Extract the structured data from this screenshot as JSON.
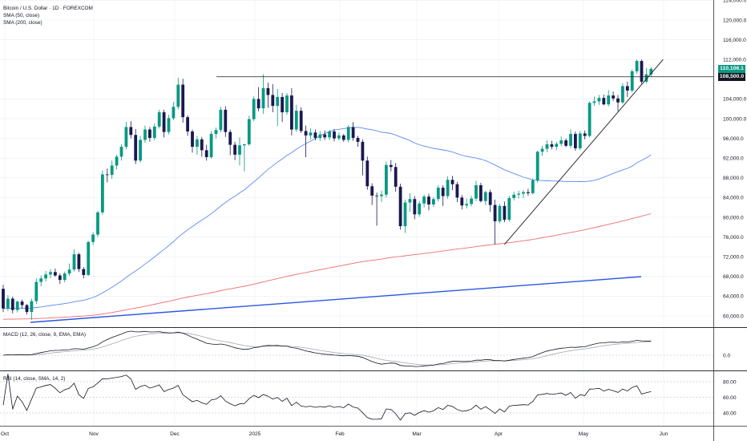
{
  "colors": {
    "up": "#089981",
    "down": "#1a1850",
    "sma50": "#5b8def",
    "sma200": "#ee6e6e",
    "long_trend": "#2a55e5",
    "resistance": "#1a1a1a",
    "grid": "#e6e9ef",
    "price_badge": "#089981",
    "level_badge": "#131722",
    "macd_line": "#131722",
    "signal_line": "#a5a8b0",
    "rsi_line": "#131722"
  },
  "legend": {
    "symbol": "Bitcoin / U.S. Dollar · 1D · FOREXCOM",
    "sma50": "SMA (50, close)",
    "sma200": "SMA (200, close)",
    "macd": "MACD (12, 26, close, 9, EMA, EMA)",
    "rsi": "RSI (14, close, SMA, 14, 2)"
  },
  "badges": {
    "last_price": "110,106.1",
    "level": "108,500.0"
  },
  "chart_data": {
    "type": "candlestick",
    "x_axis_labels": [
      "Oct",
      "Nov",
      "Dec",
      "2025",
      "Feb",
      "Mar",
      "Apr",
      "May",
      "Jun"
    ],
    "price_axis_labels": [
      "124,000.0",
      "120,000.0",
      "116,000.0",
      "112,000.0",
      "104,000.0",
      "100,000.0",
      "96,000.0",
      "92,000.0",
      "88,000.0",
      "84,000.0",
      "80,000.0",
      "76,000.0",
      "72,000.0",
      "68,000.0",
      "64,000.0",
      "60,000.0"
    ],
    "macd_axis_labels": [
      "0.0"
    ],
    "rsi_axis_labels": [
      "80.00",
      "60.00",
      "40.00"
    ],
    "candles": [
      {
        "o": 65500,
        "h": 66300,
        "l": 60800,
        "c": 61500
      },
      {
        "o": 61500,
        "h": 64200,
        "l": 61000,
        "c": 63500
      },
      {
        "o": 63500,
        "h": 63900,
        "l": 60500,
        "c": 61200
      },
      {
        "o": 61200,
        "h": 63100,
        "l": 60700,
        "c": 62900
      },
      {
        "o": 62900,
        "h": 63300,
        "l": 61500,
        "c": 62200
      },
      {
        "o": 62200,
        "h": 62400,
        "l": 60300,
        "c": 60800
      },
      {
        "o": 60800,
        "h": 63500,
        "l": 59200,
        "c": 63000
      },
      {
        "o": 63000,
        "h": 67600,
        "l": 62400,
        "c": 66900
      },
      {
        "o": 66900,
        "h": 68200,
        "l": 66000,
        "c": 67600
      },
      {
        "o": 67600,
        "h": 69100,
        "l": 67000,
        "c": 68400
      },
      {
        "o": 68400,
        "h": 69500,
        "l": 67600,
        "c": 68900
      },
      {
        "o": 68900,
        "h": 69600,
        "l": 67900,
        "c": 68200
      },
      {
        "o": 68200,
        "h": 68600,
        "l": 66500,
        "c": 67300
      },
      {
        "o": 67300,
        "h": 69000,
        "l": 66800,
        "c": 68600
      },
      {
        "o": 68600,
        "h": 70600,
        "l": 68100,
        "c": 69400
      },
      {
        "o": 69400,
        "h": 73500,
        "l": 69000,
        "c": 72500
      },
      {
        "o": 72500,
        "h": 72800,
        "l": 68900,
        "c": 69500
      },
      {
        "o": 69500,
        "h": 69900,
        "l": 67600,
        "c": 68300
      },
      {
        "o": 68300,
        "h": 75200,
        "l": 68100,
        "c": 75000
      },
      {
        "o": 75000,
        "h": 77000,
        "l": 74400,
        "c": 76500
      },
      {
        "o": 76500,
        "h": 81300,
        "l": 76000,
        "c": 81000
      },
      {
        "o": 81000,
        "h": 89500,
        "l": 80500,
        "c": 88700
      },
      {
        "o": 88700,
        "h": 89900,
        "l": 87100,
        "c": 88600
      },
      {
        "o": 88600,
        "h": 91500,
        "l": 87800,
        "c": 90500
      },
      {
        "o": 90500,
        "h": 92700,
        "l": 89700,
        "c": 92300
      },
      {
        "o": 92300,
        "h": 94800,
        "l": 91500,
        "c": 94300
      },
      {
        "o": 94300,
        "h": 99300,
        "l": 93800,
        "c": 98300
      },
      {
        "o": 98300,
        "h": 99500,
        "l": 96000,
        "c": 96700
      },
      {
        "o": 96700,
        "h": 97900,
        "l": 90800,
        "c": 91500
      },
      {
        "o": 91500,
        "h": 96500,
        "l": 91100,
        "c": 95700
      },
      {
        "o": 95700,
        "h": 98600,
        "l": 95100,
        "c": 97800
      },
      {
        "o": 97800,
        "h": 98300,
        "l": 95300,
        "c": 96100
      },
      {
        "o": 96100,
        "h": 99000,
        "l": 95600,
        "c": 98400
      },
      {
        "o": 98400,
        "h": 101800,
        "l": 98000,
        "c": 101300
      },
      {
        "o": 101300,
        "h": 101800,
        "l": 96200,
        "c": 97300
      },
      {
        "o": 97300,
        "h": 100800,
        "l": 96800,
        "c": 100100
      },
      {
        "o": 100100,
        "h": 103400,
        "l": 99700,
        "c": 102400
      },
      {
        "o": 102400,
        "h": 108300,
        "l": 101900,
        "c": 106900
      },
      {
        "o": 106900,
        "h": 108100,
        "l": 99200,
        "c": 100300
      },
      {
        "o": 100300,
        "h": 100700,
        "l": 96500,
        "c": 97400
      },
      {
        "o": 97400,
        "h": 97800,
        "l": 93100,
        "c": 94300
      },
      {
        "o": 94300,
        "h": 96500,
        "l": 92700,
        "c": 95800
      },
      {
        "o": 95800,
        "h": 96300,
        "l": 92300,
        "c": 93600
      },
      {
        "o": 93600,
        "h": 94700,
        "l": 91500,
        "c": 92200
      },
      {
        "o": 92200,
        "h": 97500,
        "l": 91900,
        "c": 96900
      },
      {
        "o": 96900,
        "h": 98200,
        "l": 96000,
        "c": 97700
      },
      {
        "o": 97700,
        "h": 102400,
        "l": 97200,
        "c": 101800
      },
      {
        "o": 101800,
        "h": 102500,
        "l": 96300,
        "c": 97300
      },
      {
        "o": 97300,
        "h": 97800,
        "l": 92600,
        "c": 94700
      },
      {
        "o": 94700,
        "h": 95300,
        "l": 91600,
        "c": 92700
      },
      {
        "o": 92700,
        "h": 96200,
        "l": 90500,
        "c": 94600
      },
      {
        "o": 94600,
        "h": 94900,
        "l": 89300,
        "c": 94800
      },
      {
        "o": 94800,
        "h": 100600,
        "l": 94500,
        "c": 99900
      },
      {
        "o": 99900,
        "h": 104500,
        "l": 99500,
        "c": 104000
      },
      {
        "o": 104000,
        "h": 106400,
        "l": 101500,
        "c": 102100
      },
      {
        "o": 102100,
        "h": 109000,
        "l": 101000,
        "c": 106200
      },
      {
        "o": 106200,
        "h": 107300,
        "l": 102200,
        "c": 104800
      },
      {
        "o": 104800,
        "h": 107000,
        "l": 101300,
        "c": 102600
      },
      {
        "o": 102600,
        "h": 106000,
        "l": 98500,
        "c": 104400
      },
      {
        "o": 104400,
        "h": 105200,
        "l": 99300,
        "c": 101300
      },
      {
        "o": 101300,
        "h": 105200,
        "l": 100800,
        "c": 104700
      },
      {
        "o": 104700,
        "h": 106200,
        "l": 96600,
        "c": 97800
      },
      {
        "o": 97800,
        "h": 102800,
        "l": 97300,
        "c": 101600
      },
      {
        "o": 101600,
        "h": 102300,
        "l": 97100,
        "c": 97500
      },
      {
        "o": 97500,
        "h": 98600,
        "l": 92200,
        "c": 96600
      },
      {
        "o": 96600,
        "h": 98000,
        "l": 95800,
        "c": 97200
      },
      {
        "o": 97200,
        "h": 97800,
        "l": 95600,
        "c": 96100
      },
      {
        "o": 96100,
        "h": 97500,
        "l": 95500,
        "c": 96800
      },
      {
        "o": 96800,
        "h": 97600,
        "l": 95700,
        "c": 96200
      },
      {
        "o": 96200,
        "h": 97700,
        "l": 95700,
        "c": 97400
      },
      {
        "o": 97400,
        "h": 97900,
        "l": 95400,
        "c": 96000
      },
      {
        "o": 96000,
        "h": 97200,
        "l": 95600,
        "c": 96600
      },
      {
        "o": 96600,
        "h": 96900,
        "l": 95300,
        "c": 95700
      },
      {
        "o": 95700,
        "h": 98700,
        "l": 95200,
        "c": 98300
      },
      {
        "o": 98300,
        "h": 99300,
        "l": 95500,
        "c": 96100
      },
      {
        "o": 96100,
        "h": 96500,
        "l": 94300,
        "c": 95300
      },
      {
        "o": 95300,
        "h": 95800,
        "l": 88500,
        "c": 91500
      },
      {
        "o": 91500,
        "h": 92300,
        "l": 85600,
        "c": 86300
      },
      {
        "o": 86300,
        "h": 86900,
        "l": 82500,
        "c": 84400
      },
      {
        "o": 84400,
        "h": 85000,
        "l": 78300,
        "c": 84300
      },
      {
        "o": 84300,
        "h": 85400,
        "l": 83100,
        "c": 84600
      },
      {
        "o": 84600,
        "h": 91300,
        "l": 84000,
        "c": 90600
      },
      {
        "o": 90600,
        "h": 91600,
        "l": 89300,
        "c": 90200
      },
      {
        "o": 90200,
        "h": 91000,
        "l": 85200,
        "c": 86200
      },
      {
        "o": 86200,
        "h": 86800,
        "l": 77500,
        "c": 78200
      },
      {
        "o": 78200,
        "h": 83600,
        "l": 76800,
        "c": 83000
      },
      {
        "o": 83000,
        "h": 84900,
        "l": 81100,
        "c": 83700
      },
      {
        "o": 83700,
        "h": 84300,
        "l": 79600,
        "c": 80600
      },
      {
        "o": 80600,
        "h": 83300,
        "l": 80100,
        "c": 82800
      },
      {
        "o": 82800,
        "h": 84600,
        "l": 82000,
        "c": 84200
      },
      {
        "o": 84200,
        "h": 84800,
        "l": 81400,
        "c": 82600
      },
      {
        "o": 82600,
        "h": 84100,
        "l": 82100,
        "c": 83700
      },
      {
        "o": 83700,
        "h": 86500,
        "l": 83200,
        "c": 86000
      },
      {
        "o": 86000,
        "h": 86500,
        "l": 82300,
        "c": 84300
      },
      {
        "o": 84300,
        "h": 88300,
        "l": 83800,
        "c": 87600
      },
      {
        "o": 87600,
        "h": 88400,
        "l": 85500,
        "c": 86700
      },
      {
        "o": 86700,
        "h": 87200,
        "l": 83100,
        "c": 84000
      },
      {
        "o": 84000,
        "h": 84500,
        "l": 81600,
        "c": 82400
      },
      {
        "o": 82400,
        "h": 83800,
        "l": 81800,
        "c": 82700
      },
      {
        "o": 82700,
        "h": 84400,
        "l": 82200,
        "c": 83800
      },
      {
        "o": 83800,
        "h": 87400,
        "l": 83300,
        "c": 86500
      },
      {
        "o": 86500,
        "h": 87000,
        "l": 83000,
        "c": 83300
      },
      {
        "o": 83300,
        "h": 85400,
        "l": 82500,
        "c": 85100
      },
      {
        "o": 85100,
        "h": 85600,
        "l": 81100,
        "c": 82500
      },
      {
        "o": 82500,
        "h": 83600,
        "l": 74500,
        "c": 79200
      },
      {
        "o": 79200,
        "h": 82700,
        "l": 78800,
        "c": 82300
      },
      {
        "o": 82300,
        "h": 83200,
        "l": 79000,
        "c": 79500
      },
      {
        "o": 79500,
        "h": 84400,
        "l": 79100,
        "c": 83900
      },
      {
        "o": 83900,
        "h": 85200,
        "l": 83400,
        "c": 84600
      },
      {
        "o": 84600,
        "h": 85400,
        "l": 83800,
        "c": 84800
      },
      {
        "o": 84800,
        "h": 85500,
        "l": 83900,
        "c": 85100
      },
      {
        "o": 85100,
        "h": 85800,
        "l": 84400,
        "c": 84900
      },
      {
        "o": 84900,
        "h": 87900,
        "l": 84600,
        "c": 87500
      },
      {
        "o": 87500,
        "h": 93500,
        "l": 87000,
        "c": 93300
      },
      {
        "o": 93300,
        "h": 94500,
        "l": 92500,
        "c": 93900
      },
      {
        "o": 93900,
        "h": 95600,
        "l": 93200,
        "c": 94800
      },
      {
        "o": 94800,
        "h": 95500,
        "l": 93800,
        "c": 94300
      },
      {
        "o": 94300,
        "h": 95300,
        "l": 93600,
        "c": 94900
      },
      {
        "o": 94900,
        "h": 96400,
        "l": 94400,
        "c": 95600
      },
      {
        "o": 95600,
        "h": 96000,
        "l": 94200,
        "c": 94500
      },
      {
        "o": 94500,
        "h": 97800,
        "l": 94000,
        "c": 96900
      },
      {
        "o": 96900,
        "h": 97400,
        "l": 93500,
        "c": 94000
      },
      {
        "o": 94000,
        "h": 97500,
        "l": 93600,
        "c": 97000
      },
      {
        "o": 97000,
        "h": 97600,
        "l": 95800,
        "c": 96500
      },
      {
        "o": 96500,
        "h": 103500,
        "l": 96200,
        "c": 103200
      },
      {
        "o": 103200,
        "h": 104500,
        "l": 102600,
        "c": 103500
      },
      {
        "o": 103500,
        "h": 104800,
        "l": 102800,
        "c": 104200
      },
      {
        "o": 104200,
        "h": 104900,
        "l": 102700,
        "c": 102900
      },
      {
        "o": 102900,
        "h": 105800,
        "l": 102500,
        "c": 104700
      },
      {
        "o": 104700,
        "h": 105500,
        "l": 103600,
        "c": 104100
      },
      {
        "o": 104100,
        "h": 104800,
        "l": 101500,
        "c": 103300
      },
      {
        "o": 103300,
        "h": 107200,
        "l": 103000,
        "c": 106600
      },
      {
        "o": 106600,
        "h": 107500,
        "l": 104400,
        "c": 105700
      },
      {
        "o": 105700,
        "h": 110000,
        "l": 105300,
        "c": 109600
      },
      {
        "o": 109600,
        "h": 112000,
        "l": 109100,
        "c": 111700
      },
      {
        "o": 111700,
        "h": 112000,
        "l": 107100,
        "c": 107500
      },
      {
        "o": 107500,
        "h": 110300,
        "l": 107200,
        "c": 109000
      },
      {
        "o": 109000,
        "h": 110500,
        "l": 108500,
        "c": 110106.1
      }
    ]
  }
}
